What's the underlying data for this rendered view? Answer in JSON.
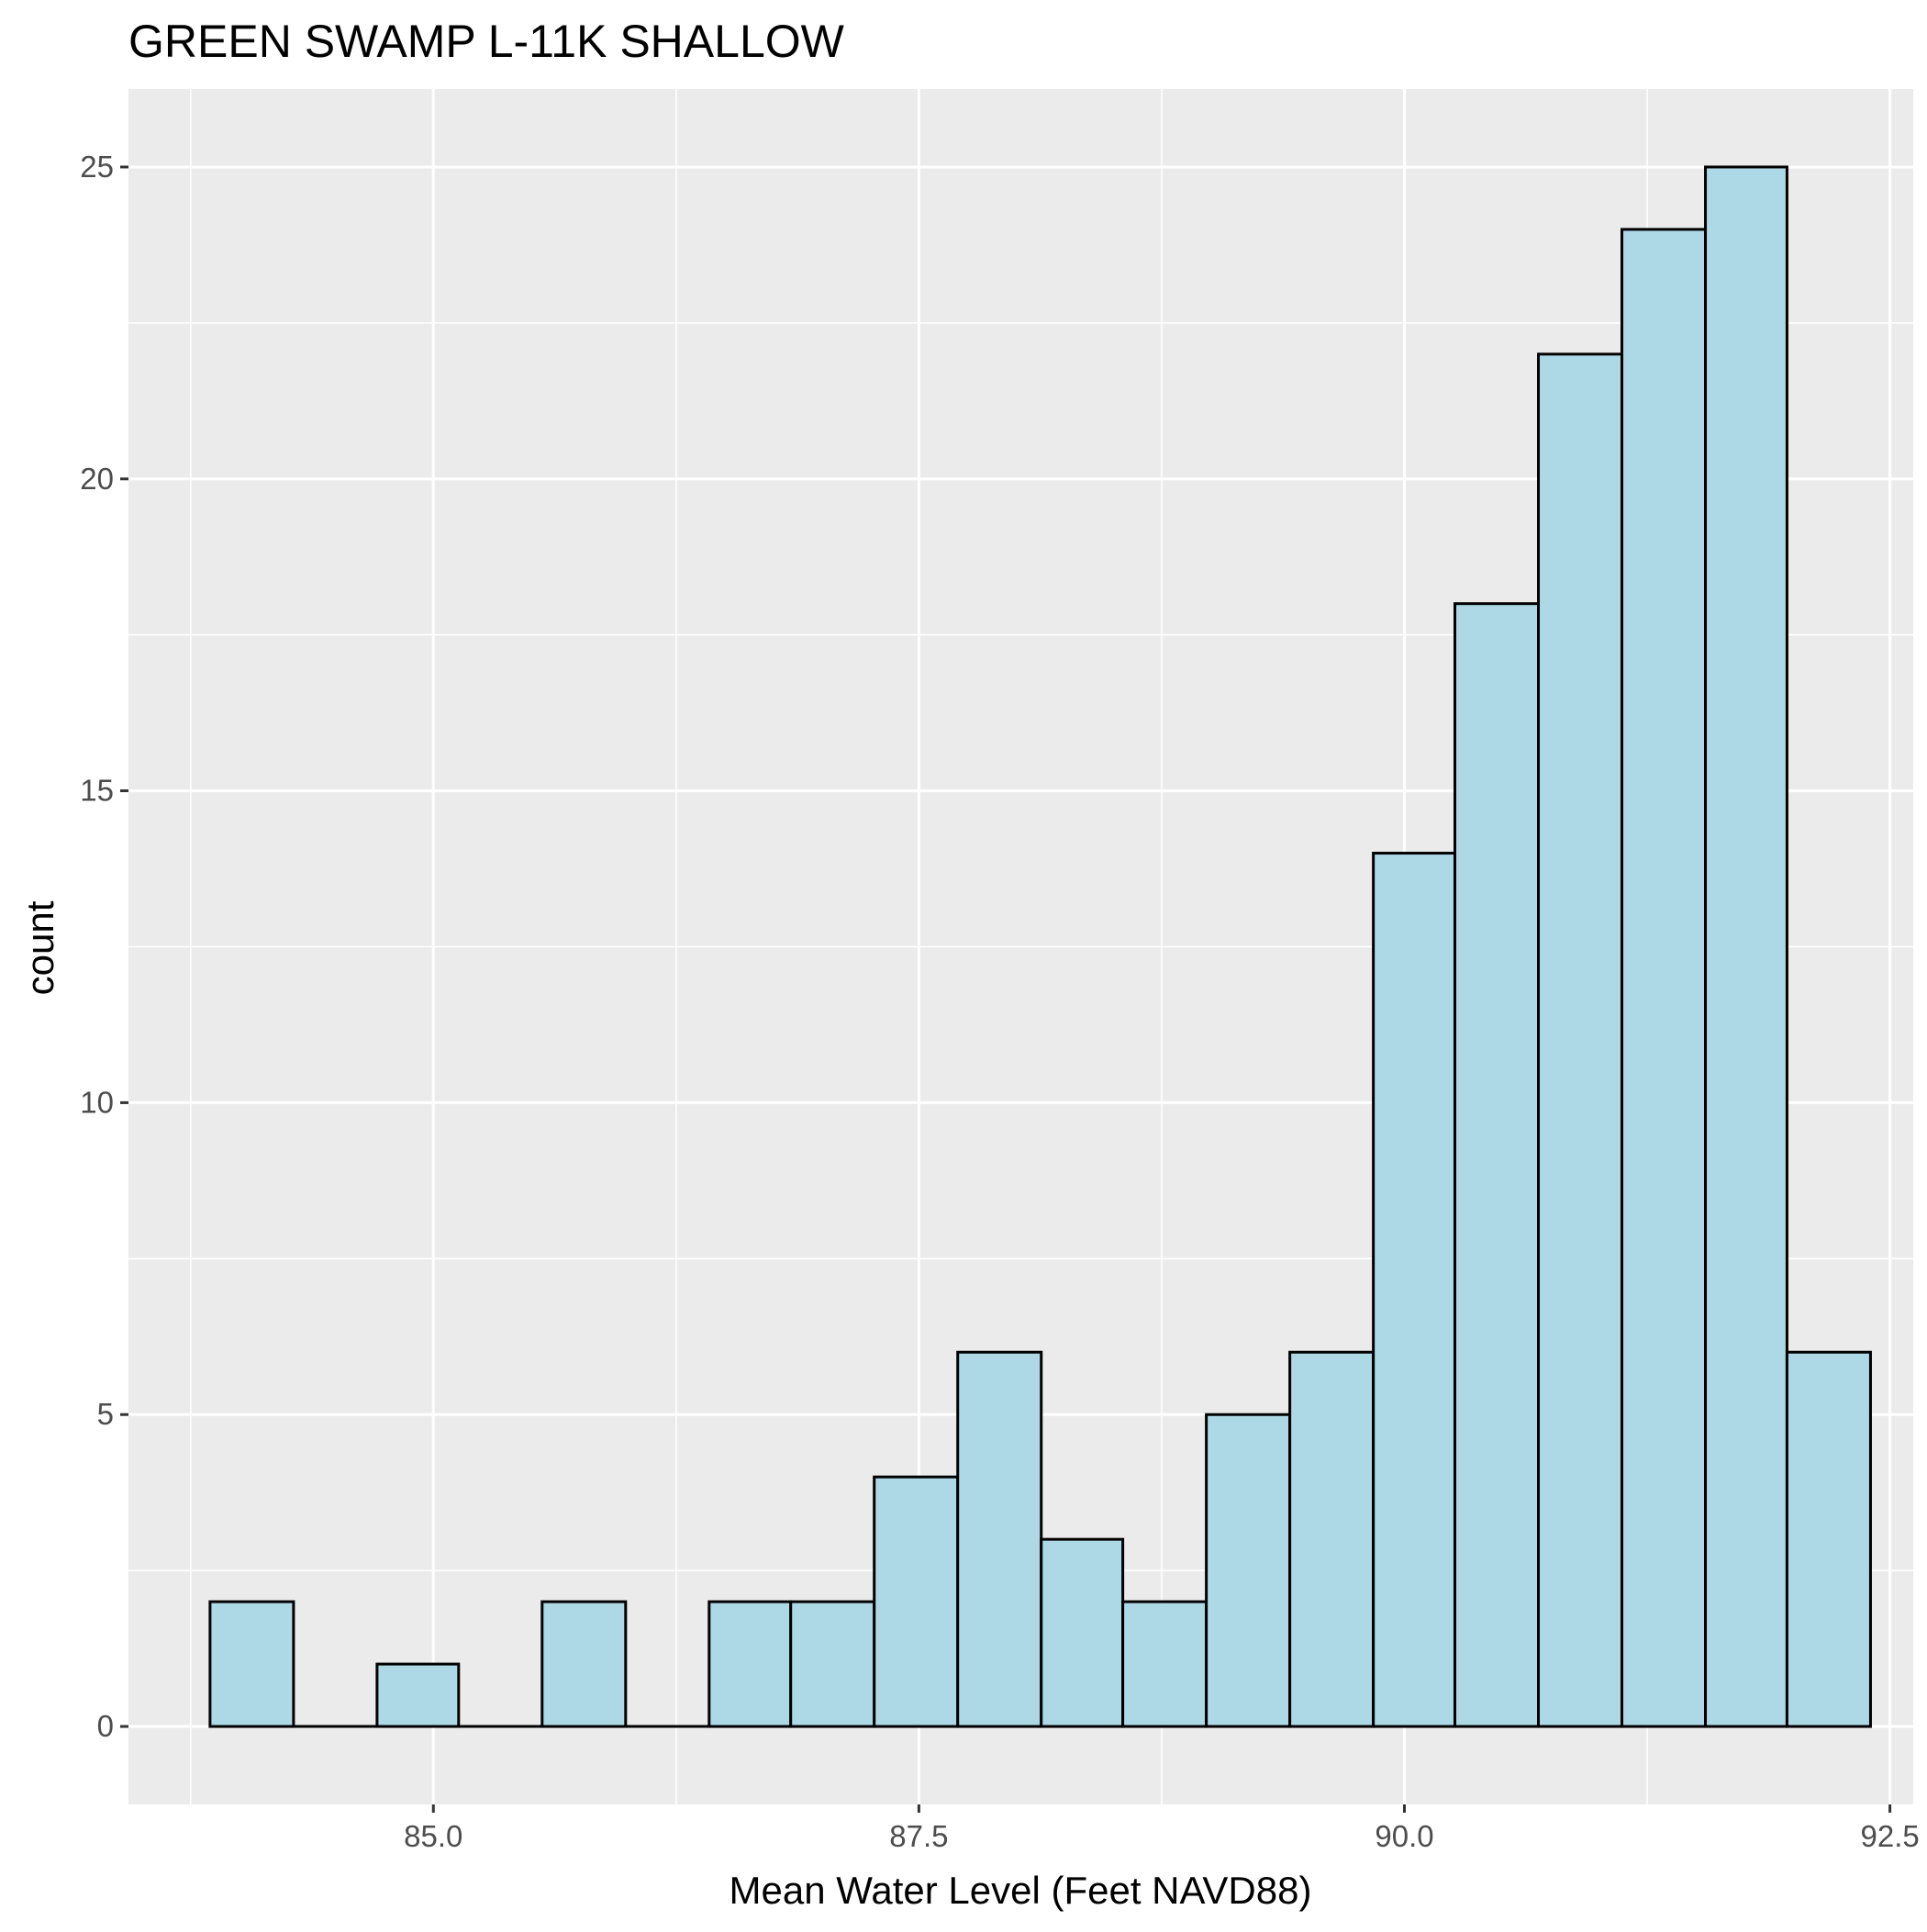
{
  "chart_data": {
    "type": "bar",
    "title": "GREEN SWAMP L-11K SHALLOW",
    "xlabel": "Mean Water Level (Feet NAVD88)",
    "ylabel": "count",
    "bin_width": 0.428,
    "bins": [
      {
        "x0": 83.85,
        "x1": 84.28,
        "count": 2
      },
      {
        "x0": 84.28,
        "x1": 84.71,
        "count": 0
      },
      {
        "x0": 84.71,
        "x1": 85.13,
        "count": 1
      },
      {
        "x0": 85.13,
        "x1": 85.56,
        "count": 0
      },
      {
        "x0": 85.56,
        "x1": 85.99,
        "count": 2
      },
      {
        "x0": 85.99,
        "x1": 86.42,
        "count": 0
      },
      {
        "x0": 86.42,
        "x1": 86.84,
        "count": 2
      },
      {
        "x0": 86.84,
        "x1": 87.27,
        "count": 2
      },
      {
        "x0": 87.27,
        "x1": 87.7,
        "count": 4
      },
      {
        "x0": 87.7,
        "x1": 88.13,
        "count": 6
      },
      {
        "x0": 88.13,
        "x1": 88.55,
        "count": 3
      },
      {
        "x0": 88.55,
        "x1": 88.98,
        "count": 2
      },
      {
        "x0": 88.98,
        "x1": 89.41,
        "count": 5
      },
      {
        "x0": 89.41,
        "x1": 89.84,
        "count": 6
      },
      {
        "x0": 89.84,
        "x1": 90.26,
        "count": 14
      },
      {
        "x0": 90.26,
        "x1": 90.69,
        "count": 18
      },
      {
        "x0": 90.69,
        "x1": 91.12,
        "count": 22
      },
      {
        "x0": 91.12,
        "x1": 91.55,
        "count": 24
      },
      {
        "x0": 91.55,
        "x1": 91.97,
        "count": 25
      },
      {
        "x0": 91.97,
        "x1": 92.4,
        "count": 6
      }
    ],
    "xlim": [
      83.43,
      92.62
    ],
    "ylim": [
      -1.25,
      26.25
    ],
    "x_ticks": [
      85.0,
      87.5,
      90.0,
      92.5
    ],
    "x_tick_labels": [
      "85.0",
      "87.5",
      "90.0",
      "92.5"
    ],
    "y_ticks": [
      0,
      5,
      10,
      15,
      20,
      25
    ],
    "y_tick_labels": [
      "0",
      "5",
      "10",
      "15",
      "20",
      "25"
    ],
    "grid": true,
    "bar_fill": "#add8e6",
    "bar_outline": "#000000",
    "panel_background": "#ebebeb",
    "grid_color": "#ffffff"
  }
}
